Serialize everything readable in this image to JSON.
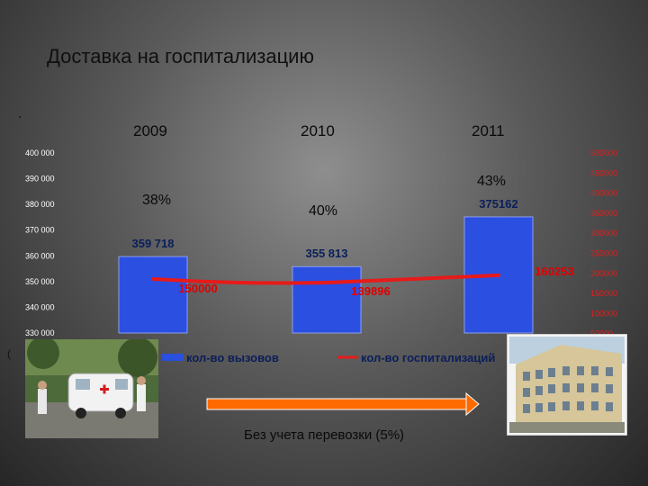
{
  "slide": {
    "title": "Доставка на госпитализацию",
    "dot": ".",
    "dot2": "(",
    "note": "Без учета перевозки (5%)"
  },
  "years": [
    "2009",
    "2010",
    "2011"
  ],
  "percents": [
    "38%",
    "40%",
    "43%"
  ],
  "chart_data": {
    "type": "bar",
    "categories": [
      "2009",
      "2010",
      "2011"
    ],
    "series": [
      {
        "name": "кол-во вызовов",
        "type": "bar",
        "axis": "left",
        "values": [
          359718,
          355813,
          375162
        ],
        "labels": [
          "359 718",
          "355 813",
          "375162"
        ],
        "color": "#2b4fe0"
      },
      {
        "name": "кол-во госпитализаций",
        "type": "line",
        "axis": "right",
        "values": [
          150000,
          139896,
          160253
        ],
        "labels": [
          "150000",
          "139896",
          "160253"
        ],
        "color": "#e81a1a"
      }
    ],
    "y_left": {
      "min": 330000,
      "max": 400000,
      "ticks": [
        "400 000",
        "390 000",
        "380 000",
        "370 000",
        "360 000",
        "350 000",
        "340 000",
        "330 000"
      ]
    },
    "y_right": {
      "min": 0,
      "max": 500000,
      "ticks": [
        "500000",
        "450000",
        "400000",
        "350000",
        "300000",
        "250000",
        "200000",
        "150000",
        "100000",
        "50000"
      ]
    }
  },
  "colors": {
    "bar": "#2b4fe0",
    "line": "#e81a1a",
    "arrow": "#ff6a00"
  },
  "icons": {
    "left_photo": "ambulance-photo",
    "right_photo": "hospital-building-photo"
  }
}
